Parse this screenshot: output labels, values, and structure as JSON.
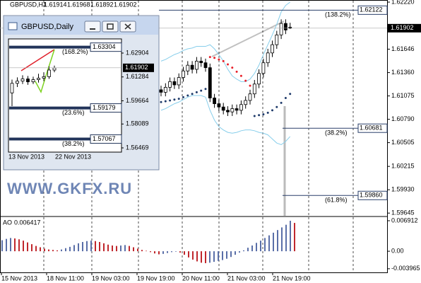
{
  "watermark": "WWW.GKFX.RU",
  "chart_data": [
    {
      "type": "candlestick",
      "title": "GBPUSD,H1",
      "header_values": [
        1.61914,
        1.61968,
        1.61892,
        1.61902
      ],
      "x_labels": [
        "15 Nov 2013",
        "18 Nov 11:00",
        "19 Nov 03:00",
        "19 Nov 19:00",
        "20 Nov 11:00",
        "21 Nov 03:00",
        "21 Nov 19:00"
      ],
      "open": [
        1.6115,
        1.6112,
        1.6118,
        1.6125,
        1.6121,
        1.613,
        1.6138,
        1.6145,
        1.614,
        1.615,
        1.6148,
        1.6142,
        1.6105,
        1.6098,
        1.6094,
        1.609,
        1.6088,
        1.6092,
        1.609,
        1.6097,
        1.6102,
        1.611,
        1.6122,
        1.6135,
        1.6148,
        1.616,
        1.617,
        1.6182,
        1.6196,
        1.61914
      ],
      "high": [
        1.612,
        1.6123,
        1.613,
        1.613,
        1.6135,
        1.6143,
        1.615,
        1.615,
        1.6155,
        1.6155,
        1.6153,
        1.6147,
        1.611,
        1.6103,
        1.6099,
        1.6095,
        1.6097,
        1.6097,
        1.6102,
        1.6107,
        1.6115,
        1.6127,
        1.614,
        1.6153,
        1.6165,
        1.6175,
        1.6187,
        1.6201,
        1.6201,
        1.61968
      ],
      "low": [
        1.6107,
        1.6107,
        1.6113,
        1.6116,
        1.6116,
        1.6125,
        1.6133,
        1.6135,
        1.6135,
        1.6143,
        1.6137,
        1.61,
        1.6093,
        1.6089,
        1.6085,
        1.6083,
        1.6083,
        1.6085,
        1.6085,
        1.6092,
        1.6097,
        1.6105,
        1.6117,
        1.613,
        1.6143,
        1.6155,
        1.6165,
        1.6177,
        1.6183,
        1.61892
      ],
      "close": [
        1.6112,
        1.6118,
        1.6125,
        1.6121,
        1.613,
        1.6138,
        1.6145,
        1.614,
        1.615,
        1.6148,
        1.6142,
        1.6105,
        1.6098,
        1.6094,
        1.609,
        1.6088,
        1.6092,
        1.609,
        1.6097,
        1.6102,
        1.611,
        1.6122,
        1.6135,
        1.6148,
        1.616,
        1.617,
        1.6182,
        1.6196,
        1.6188,
        1.61902
      ],
      "band_upper": [
        1.615,
        1.6152,
        1.6155,
        1.6158,
        1.616,
        1.6163,
        1.6165,
        1.6166,
        1.6168,
        1.6168,
        1.6168,
        1.617,
        1.6165,
        1.6158,
        1.615,
        1.614,
        1.6132,
        1.6128,
        1.6125,
        1.6125,
        1.6128,
        1.6135,
        1.6145,
        1.6158,
        1.617,
        1.6182,
        1.6195,
        1.621,
        1.6218,
        1.6222
      ],
      "band_lower": [
        1.609,
        1.6092,
        1.6095,
        1.6098,
        1.61,
        1.6103,
        1.6106,
        1.6108,
        1.6108,
        1.6108,
        1.6106,
        1.609,
        1.6078,
        1.607,
        1.6066,
        1.6063,
        1.6062,
        1.6063,
        1.6065,
        1.6066,
        1.6066,
        1.6065,
        1.6063,
        1.6062,
        1.606,
        1.6055,
        1.605,
        1.6048,
        1.6052,
        1.6058
      ],
      "sar": [
        1.61,
        1.6101,
        1.6102,
        1.6103,
        1.6104,
        1.6106,
        1.6108,
        1.611,
        1.6112,
        1.6114,
        1.6116,
        1.6155,
        1.6154,
        1.6152,
        1.615,
        1.6146,
        1.6142,
        1.6137,
        1.6132,
        1.6126,
        1.612,
        1.6083,
        1.6084,
        1.6085,
        1.6087,
        1.609,
        1.6094,
        1.6099,
        1.6105,
        1.611
      ],
      "band_color": "#87ceeb",
      "sar_up_color": "#1f3b6b",
      "sar_down_color": "#e8202a",
      "current_price": 1.61902,
      "levels": [
        {
          "value": 1.62122,
          "label": "1.62122",
          "ratio": "(138.2%)"
        },
        {
          "value": 1.60681,
          "label": "1.60681",
          "ratio": "(38.2%)"
        },
        {
          "value": 1.5986,
          "label": "1.59860",
          "ratio": "(61.8%)"
        }
      ],
      "ylim": [
        1.59612,
        1.62246
      ],
      "yticks": [
        {
          "value": 1.6222,
          "label": "1.62220"
        },
        1.61646,
        {
          "value": 1.6136,
          "label": "1.61360"
        },
        1.61075,
        {
          "value": 1.6079,
          "label": "1.60790"
        },
        1.60505,
        1.60215,
        {
          "value": 1.5993,
          "label": "1.59930"
        },
        1.59645
      ]
    },
    {
      "type": "bar",
      "title": "AO",
      "values": [
        0.0025,
        0.0028,
        0.003,
        0.0029,
        0.0027,
        0.0024,
        0.002,
        0.0016,
        0.0012,
        0.0009,
        0.0006,
        0.0004,
        0.0003,
        0.0002,
        0.0004,
        0.0007,
        0.001,
        0.0014,
        0.0018,
        0.0021,
        0.0023,
        0.0024,
        0.0023,
        0.0021,
        0.0018,
        0.0015,
        0.0013,
        0.0012,
        0.0013,
        0.0014,
        0.0012,
        0.0009,
        0.0006,
        0.0003,
        0.0001,
        -0.0002,
        -0.0005,
        -0.0007,
        -0.0006,
        -0.0004,
        -0.0002,
        -0.0001,
        -0.0003,
        -0.0008,
        -0.0014,
        -0.0019,
        -0.0023,
        -0.0026,
        -0.0027,
        -0.0026,
        -0.0024,
        -0.0022,
        -0.002,
        -0.0017,
        -0.0013,
        -0.0008,
        -0.0003,
        0.0002,
        0.0008,
        0.0013,
        0.0019,
        0.0024,
        0.003,
        0.0036,
        0.0042,
        0.0048,
        0.0054,
        0.006,
        0.0069,
        0.006417
      ],
      "up_color": "#5a6fa8",
      "down_color": "#c0282d",
      "ylim": [
        -0.00479,
        0.00771
      ],
      "yticks": [
        0.006912,
        {
          "value": 0,
          "label": "0.00"
        },
        -0.003965
      ]
    },
    {
      "type": "candlestick",
      "title": "GBPUSD,Daily",
      "x_labels": [
        "13 Nov 2013",
        "22 Nov 2013"
      ],
      "open": [
        1.602,
        1.6085,
        1.61,
        1.6115,
        1.6095,
        1.611,
        1.612,
        1.613,
        1.6175
      ],
      "high": [
        1.611,
        1.6125,
        1.614,
        1.6135,
        1.613,
        1.615,
        1.616,
        1.62,
        1.6205
      ],
      "low": [
        1.593,
        1.606,
        1.608,
        1.6075,
        1.608,
        1.609,
        1.61,
        1.6115,
        1.616
      ],
      "close": [
        1.6085,
        1.61,
        1.6115,
        1.6095,
        1.611,
        1.612,
        1.613,
        1.6175,
        1.619
      ],
      "current_price": 1.61902,
      "levels": [
        {
          "value": 1.63304,
          "label": "1.63304",
          "ratio": "(168.2%)"
        },
        {
          "value": 1.59179,
          "label": "1.59179",
          "ratio": "(23.6%)"
        },
        {
          "value": 1.57067,
          "label": "1.57067",
          "ratio": "(38.2%)"
        }
      ],
      "ylim": [
        1.56325,
        1.6372
      ],
      "yticks": [
        1.62904,
        1.61284,
        1.59664,
        1.58089,
        1.56469
      ]
    }
  ]
}
